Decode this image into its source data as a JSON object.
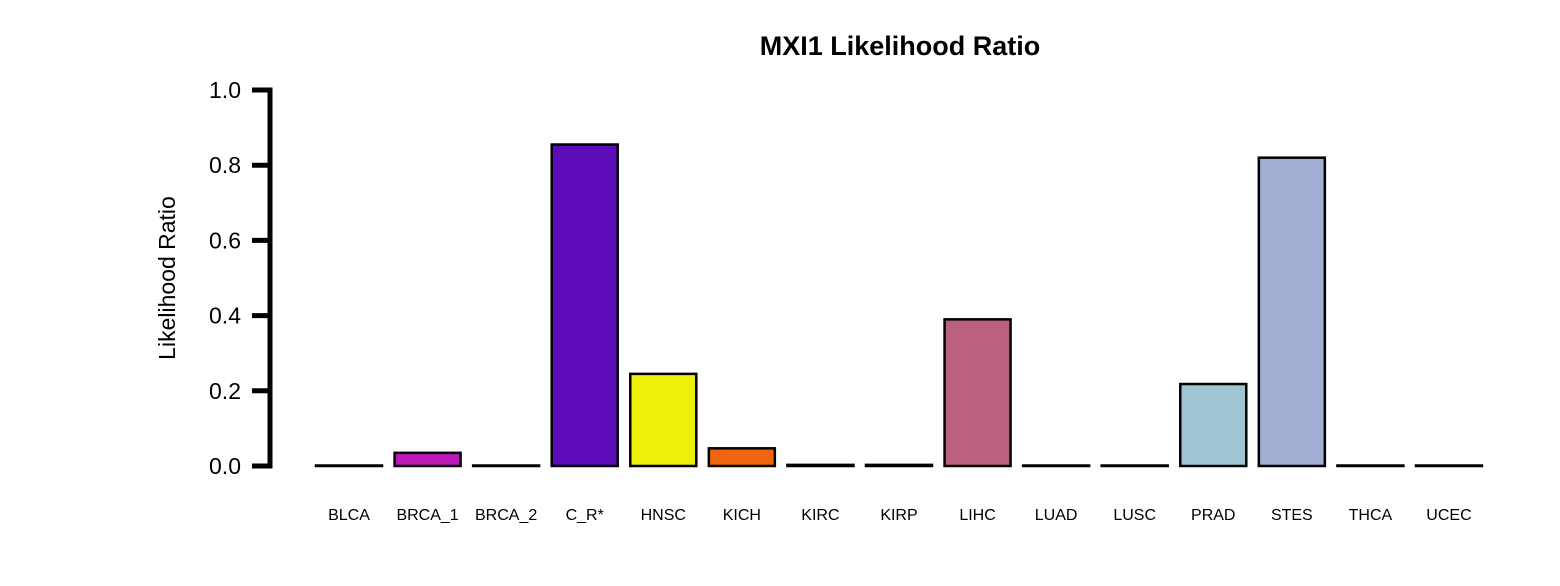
{
  "chart_data": {
    "type": "bar",
    "title": "MXI1 Likelihood Ratio",
    "xlabel": "",
    "ylabel": "Likelihood Ratio",
    "ylim": [
      0,
      1
    ],
    "yticks": [
      "0.0",
      "0.2",
      "0.4",
      "0.6",
      "0.8",
      "1.0"
    ],
    "categories": [
      "BLCA",
      "BRCA_1",
      "BRCA_2",
      "C_R*",
      "HNSC",
      "KICH",
      "KIRC",
      "KIRP",
      "LIHC",
      "LUAD",
      "LUSC",
      "PRAD",
      "STES",
      "THCA",
      "UCEC"
    ],
    "values": [
      0.0,
      0.035,
      0.0,
      0.855,
      0.245,
      0.047,
      0.003,
      0.003,
      0.39,
      0.0,
      0.0,
      0.218,
      0.82,
      0.0,
      0.0
    ],
    "colors": [
      "#000000",
      "#BB19B9",
      "#000000",
      "#5B0BB8",
      "#EEEE0B",
      "#F06410",
      "#000000",
      "#000000",
      "#BC607F",
      "#000000",
      "#000000",
      "#A0C5D2",
      "#A0AED1",
      "#000000",
      "#000000"
    ],
    "grid": false,
    "legend": "none"
  }
}
